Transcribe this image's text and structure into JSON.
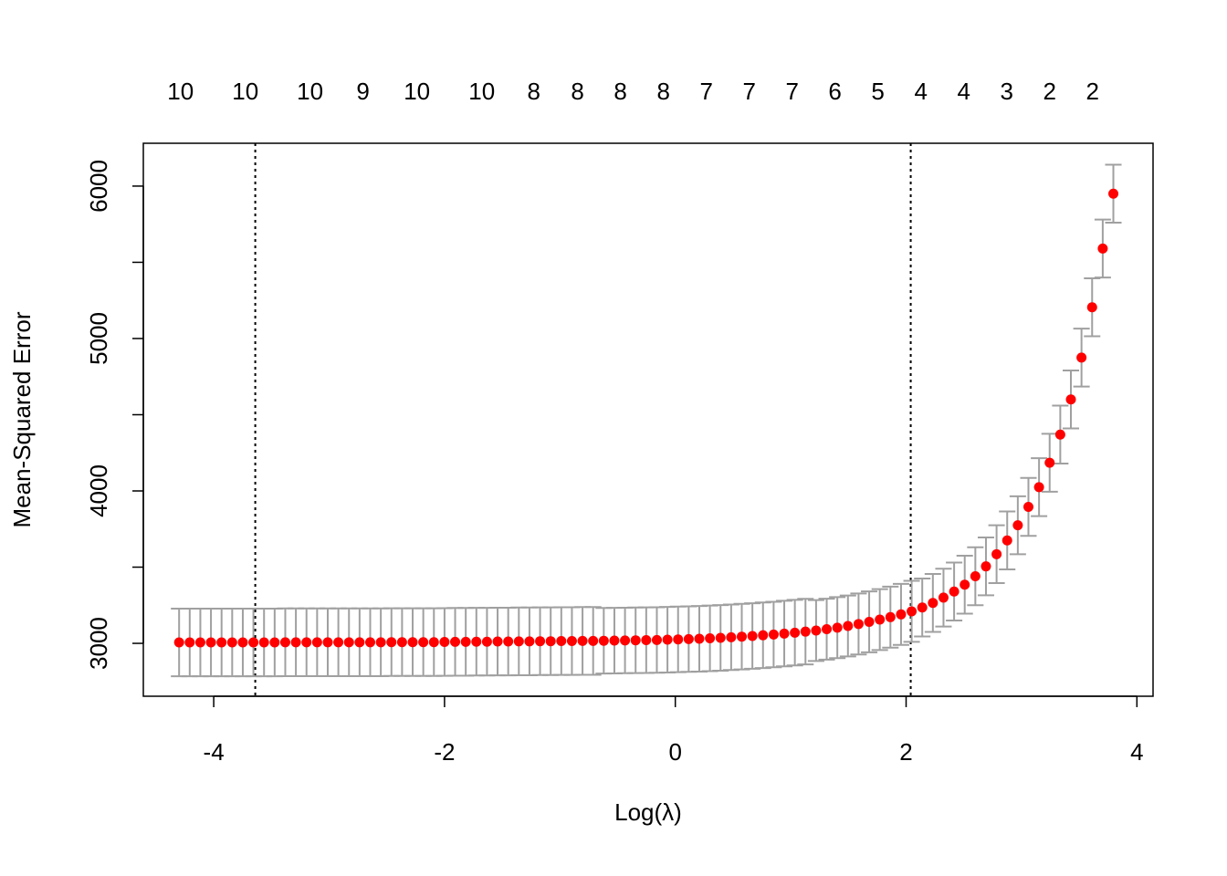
{
  "chart_data": {
    "type": "errorbar",
    "xlabel": "Log(λ)",
    "ylabel": "Mean-Squared Error",
    "x": [
      -4.3,
      -4.208,
      -4.116,
      -4.024,
      -3.932,
      -3.84,
      -3.748,
      -3.656,
      -3.564,
      -3.472,
      -3.38,
      -3.288,
      -3.196,
      -3.104,
      -3.012,
      -2.92,
      -2.828,
      -2.736,
      -2.644,
      -2.552,
      -2.46,
      -2.368,
      -2.276,
      -2.184,
      -2.092,
      -2.0,
      -1.908,
      -1.816,
      -1.724,
      -1.632,
      -1.54,
      -1.448,
      -1.356,
      -1.264,
      -1.172,
      -1.08,
      -0.988,
      -0.896,
      -0.804,
      -0.712,
      -0.62,
      -0.528,
      -0.436,
      -0.344,
      -0.252,
      -0.16,
      -0.068,
      0.024,
      0.116,
      0.208,
      0.3,
      0.392,
      0.484,
      0.576,
      0.668,
      0.76,
      0.852,
      0.944,
      1.036,
      1.128,
      1.22,
      1.312,
      1.404,
      1.496,
      1.588,
      1.68,
      1.772,
      1.864,
      1.956,
      2.048,
      2.14,
      2.232,
      2.324,
      2.416,
      2.508,
      2.6,
      2.692,
      2.784,
      2.876,
      2.968,
      3.06,
      3.152,
      3.244,
      3.336,
      3.428,
      3.52,
      3.612,
      3.704,
      3.796
    ],
    "values": [
      3006,
      3006,
      3006,
      3006,
      3006,
      3006,
      3006,
      3006,
      3006,
      3006,
      3007,
      3007,
      3007,
      3007,
      3007,
      3007,
      3007,
      3007,
      3007,
      3007,
      3008,
      3008,
      3008,
      3008,
      3008,
      3009,
      3010,
      3010,
      3011,
      3011,
      3012,
      3012,
      3013,
      3013,
      3014,
      3014,
      3015,
      3015,
      3016,
      3016,
      3017,
      3018,
      3019,
      3020,
      3021,
      3022,
      3024,
      3026,
      3028,
      3030,
      3033,
      3036,
      3040,
      3044,
      3048,
      3053,
      3058,
      3064,
      3070,
      3077,
      3084,
      3093,
      3103,
      3114,
      3127,
      3141,
      3156,
      3172,
      3190,
      3210,
      3235,
      3265,
      3300,
      3340,
      3385,
      3440,
      3505,
      3585,
      3675,
      3775,
      3895,
      4025,
      4185,
      4370,
      4600,
      4875,
      5205,
      5590,
      5950
    ],
    "errors": [
      222,
      222,
      222,
      222,
      222,
      222,
      222,
      222,
      222,
      222,
      222,
      222,
      222,
      222,
      222,
      222,
      222,
      222,
      222,
      222,
      222,
      222,
      222,
      222,
      222,
      222,
      222,
      222,
      222,
      222,
      222,
      222,
      222,
      222,
      222,
      222,
      222,
      222,
      222,
      222,
      215,
      215,
      215,
      215,
      215,
      215,
      215,
      215,
      215,
      215,
      215,
      215,
      215,
      215,
      215,
      215,
      215,
      215,
      215,
      215,
      200,
      200,
      200,
      200,
      200,
      200,
      200,
      200,
      200,
      200,
      190,
      190,
      190,
      190,
      190,
      190,
      190,
      190,
      190,
      190,
      190,
      190,
      190,
      190,
      190,
      190,
      190,
      190,
      190
    ],
    "color": "#ff0000",
    "error_color": "#a0a0a0",
    "xlim": [
      -4.61,
      4.14
    ],
    "ylim": [
      2653,
      6281
    ],
    "xticks": [
      -4,
      -2,
      0,
      2,
      4
    ],
    "yticks": [
      3000,
      4000,
      5000,
      6000
    ],
    "yminor_ticks": [
      3500,
      4500,
      5500
    ],
    "top_ticks": [
      {
        "value": -4.288,
        "label": "10"
      },
      {
        "value": -3.726,
        "label": "10"
      },
      {
        "value": -3.165,
        "label": "10"
      },
      {
        "value": -2.706,
        "label": "9"
      },
      {
        "value": -2.239,
        "label": "10"
      },
      {
        "value": -1.677,
        "label": "10"
      },
      {
        "value": -1.226,
        "label": "8"
      },
      {
        "value": -0.847,
        "label": "8"
      },
      {
        "value": -0.475,
        "label": "8"
      },
      {
        "value": -0.103,
        "label": "8"
      },
      {
        "value": 0.269,
        "label": "7"
      },
      {
        "value": 0.641,
        "label": "7"
      },
      {
        "value": 1.013,
        "label": "7"
      },
      {
        "value": 1.384,
        "label": "6"
      },
      {
        "value": 1.756,
        "label": "5"
      },
      {
        "value": 2.128,
        "label": "4"
      },
      {
        "value": 2.5,
        "label": "4"
      },
      {
        "value": 2.872,
        "label": "3"
      },
      {
        "value": 3.244,
        "label": "2"
      },
      {
        "value": 3.616,
        "label": "2"
      }
    ],
    "vlines": [
      -3.64,
      2.04
    ]
  }
}
